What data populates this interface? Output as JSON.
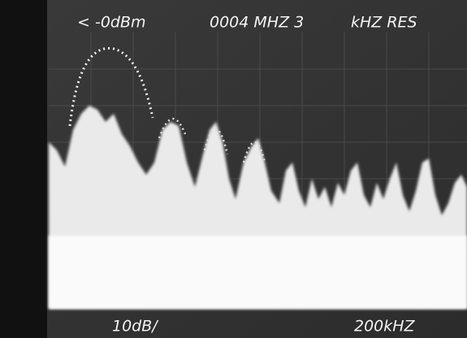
{
  "screen": {
    "top_left": "< -0dBm",
    "top_center": "0004 MHZ 3",
    "top_right": "kHZ RES",
    "bottom_left": "10dB/",
    "bottom_right": "200kHZ"
  }
}
